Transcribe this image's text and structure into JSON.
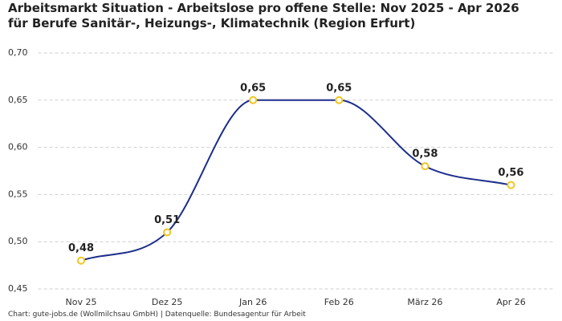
{
  "chart_data": {
    "type": "line",
    "title": "Arbeitsmarkt Situation - Arbeitslose pro offene Stelle: Nov 2025 - Apr 2026 für Berufe Sanitär-, Heizungs-, Klimatechnik (Region Erfurt)",
    "footer": "Chart: gute-jobs.de (Wollmilchsau GmbH) | Datenquelle: Bundesagentur für Arbeit",
    "categories": [
      "Nov 25",
      "Dez 25",
      "Jan 26",
      "Feb 26",
      "März 26",
      "Apr 26"
    ],
    "values": [
      0.48,
      0.51,
      0.65,
      0.65,
      0.58,
      0.56
    ],
    "value_labels": [
      "0,48",
      "0,51",
      "0,65",
      "0,65",
      "0,58",
      "0,56"
    ],
    "color": "#1c2d8c",
    "marker_color": "#f2c521",
    "ylim": [
      0.45,
      0.7
    ],
    "yticks": [
      {
        "value": 0.45,
        "label": "0,45"
      },
      {
        "value": 0.5,
        "label": "0,50"
      },
      {
        "value": 0.55,
        "label": "0,55"
      },
      {
        "value": 0.6,
        "label": "0,60"
      },
      {
        "value": 0.65,
        "label": "0,65"
      },
      {
        "value": 0.7,
        "label": "0,70"
      }
    ],
    "grid": true
  }
}
